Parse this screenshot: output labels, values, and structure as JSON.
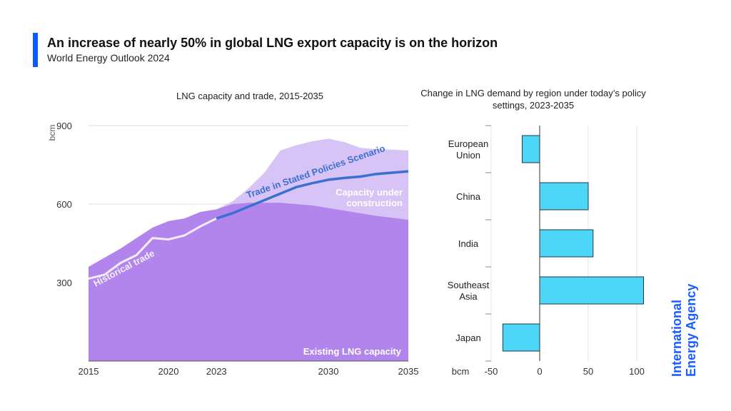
{
  "header": {
    "title": "An increase of nearly 50% in global LNG export capacity is on the horizon",
    "subtitle": "World Energy Outlook 2024",
    "accent_color": "#0a5cff"
  },
  "brand": {
    "line1": "International",
    "line2": "Energy Agency",
    "color": "#1a5dff"
  },
  "chart_data": [
    {
      "type": "area",
      "title": "LNG capacity and trade, 2015-2035",
      "ylabel": "bcm",
      "ylim": [
        0,
        900
      ],
      "xlim": [
        2015,
        2035
      ],
      "x_ticks": [
        2015,
        2020,
        2023,
        2030,
        2035
      ],
      "y_ticks": [
        300,
        600,
        900
      ],
      "grid": true,
      "series": [
        {
          "name": "Existing LNG capacity",
          "kind": "area",
          "color": "#b185ec",
          "x": [
            2015,
            2016,
            2017,
            2018,
            2019,
            2020,
            2021,
            2022,
            2023,
            2024,
            2025,
            2026,
            2027,
            2028,
            2029,
            2030,
            2031,
            2032,
            2033,
            2034,
            2035
          ],
          "values": [
            360,
            395,
            430,
            470,
            510,
            535,
            545,
            570,
            580,
            600,
            605,
            605,
            605,
            600,
            595,
            585,
            575,
            565,
            555,
            548,
            540
          ]
        },
        {
          "name": "Capacity under construction",
          "kind": "stacked_area",
          "color": "#d8c3f6",
          "x": [
            2015,
            2016,
            2017,
            2018,
            2019,
            2020,
            2021,
            2022,
            2023,
            2024,
            2025,
            2026,
            2027,
            2028,
            2029,
            2030,
            2031,
            2032,
            2033,
            2034,
            2035
          ],
          "values": [
            0,
            0,
            0,
            0,
            0,
            0,
            0,
            0,
            0,
            10,
            55,
            115,
            200,
            225,
            245,
            265,
            262,
            250,
            255,
            260,
            265
          ]
        },
        {
          "name": "Historical trade",
          "kind": "line",
          "color": "#f2ecfb",
          "x": [
            2015,
            2016,
            2017,
            2018,
            2019,
            2020,
            2021,
            2022,
            2023
          ],
          "values": [
            315,
            330,
            375,
            405,
            470,
            465,
            480,
            515,
            545
          ]
        },
        {
          "name": "Trade in Stated Policies Scenario",
          "kind": "line",
          "color": "#3b6fd0",
          "x": [
            2023,
            2024,
            2025,
            2026,
            2027,
            2028,
            2029,
            2030,
            2031,
            2032,
            2033,
            2034,
            2035
          ],
          "values": [
            545,
            565,
            590,
            615,
            640,
            665,
            680,
            693,
            700,
            705,
            715,
            720,
            725
          ]
        }
      ]
    },
    {
      "type": "bar",
      "orientation": "horizontal",
      "title": "Change in LNG demand by region under today’s policy settings, 2023-2035",
      "xlabel": "bcm",
      "xlim": [
        -50,
        120
      ],
      "x_ticks": [
        -50,
        0,
        50,
        100
      ],
      "grid": true,
      "bar_color": "#4dd6f7",
      "categories": [
        [
          "European",
          "Union"
        ],
        [
          "China"
        ],
        [
          "India"
        ],
        [
          "Southeast",
          "Asia"
        ],
        [
          "Japan"
        ]
      ],
      "values": [
        -18,
        50,
        55,
        107,
        -38
      ]
    }
  ]
}
